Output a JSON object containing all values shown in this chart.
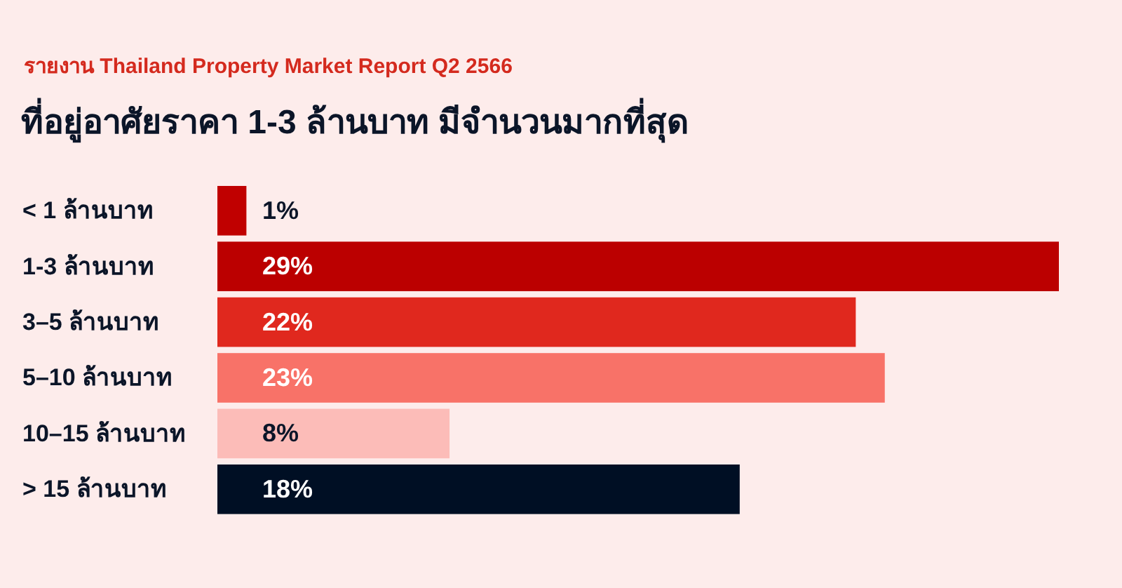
{
  "chart_data": {
    "type": "bar",
    "orientation": "horizontal",
    "subtitle": "รายงาน Thailand Property Market Report Q2 2566",
    "title": "ที่อยู่อาศัยราคา 1-3 ล้านบาท มีจำนวนมากที่สุด",
    "categories": [
      "< 1 ล้านบาท",
      "1-3 ล้านบาท",
      "3–5 ล้านบาท",
      "5–10 ล้านบาท",
      "10–15 ล้านบาท",
      "> 15 ล้านบาท"
    ],
    "values": [
      1,
      29,
      22,
      23,
      8,
      18
    ],
    "colors": [
      "#c00000",
      "#bb0000",
      "#e0281e",
      "#f87268",
      "#fcbcb8",
      "#000f24"
    ],
    "value_labels": [
      "1%",
      "29%",
      "22%",
      "23%",
      "8%",
      "18%"
    ]
  }
}
